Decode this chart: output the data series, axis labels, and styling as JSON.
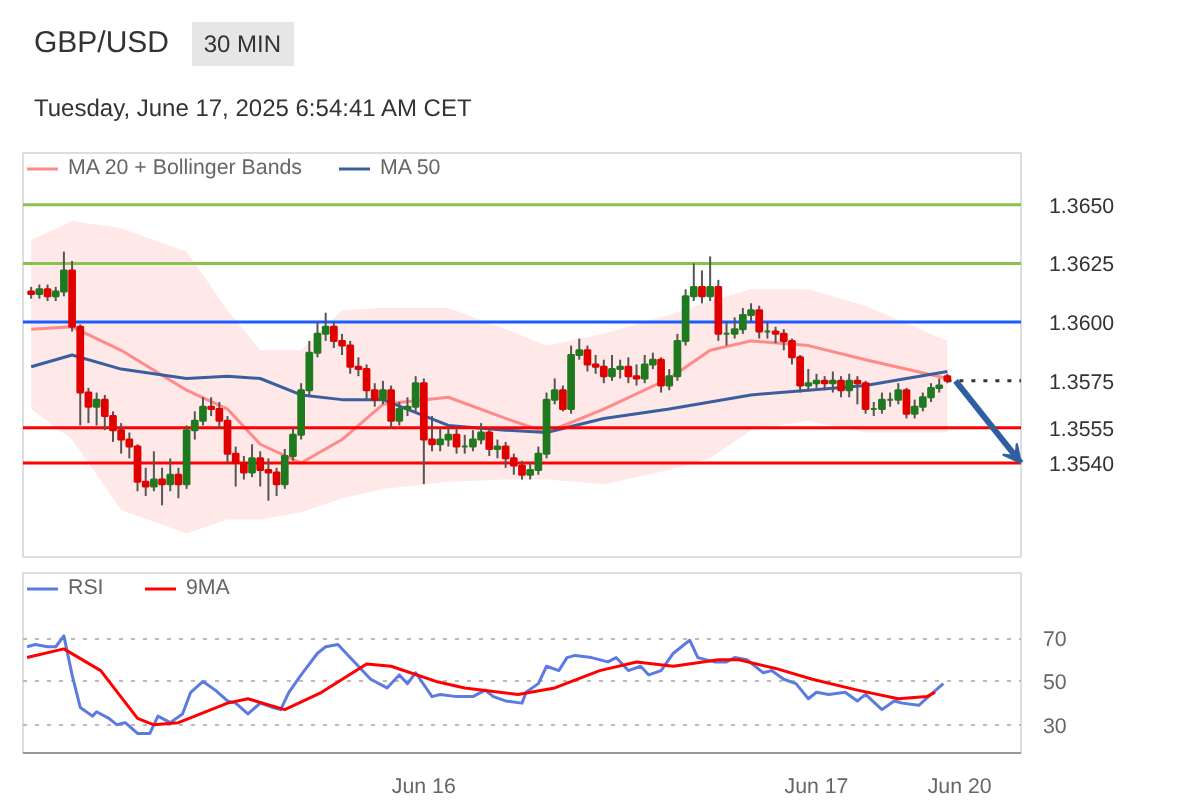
{
  "chart_data": [
    {
      "type": "candlestick",
      "title": "GBP/USD",
      "subtitle": "Tuesday, June 17, 2025 6:54:41 AM CET",
      "annotations": [
        "30 MIN"
      ],
      "x": [
        "2025-06-15T00:00",
        "2025-06-15T00:30",
        "2025-06-15T01:00",
        "2025-06-15T01:30",
        "2025-06-15T02:00",
        "2025-06-15T02:30",
        "2025-06-15T03:00",
        "2025-06-15T03:30",
        "2025-06-15T04:00",
        "2025-06-15T04:30",
        "2025-06-15T05:00",
        "2025-06-15T05:30",
        "2025-06-15T06:00",
        "2025-06-15T06:30",
        "2025-06-15T07:00",
        "2025-06-15T07:30",
        "2025-06-15T08:00",
        "2025-06-15T08:30",
        "2025-06-15T09:00",
        "2025-06-15T09:30",
        "2025-06-15T10:00",
        "2025-06-15T10:30",
        "2025-06-15T11:00",
        "2025-06-15T11:30",
        "2025-06-15T12:00",
        "2025-06-15T12:30",
        "2025-06-15T13:00",
        "2025-06-15T13:30",
        "2025-06-15T14:00",
        "2025-06-15T14:30",
        "2025-06-15T15:00",
        "2025-06-15T15:30",
        "2025-06-15T16:00",
        "2025-06-15T16:30",
        "2025-06-15T17:00",
        "2025-06-15T17:30",
        "2025-06-15T18:00",
        "2025-06-15T18:30",
        "2025-06-15T19:00",
        "2025-06-15T19:30",
        "2025-06-15T20:00",
        "2025-06-15T20:30",
        "2025-06-15T21:00",
        "2025-06-15T21:30",
        "2025-06-15T22:00",
        "2025-06-15T22:30",
        "2025-06-15T23:00",
        "2025-06-15T23:30",
        "2025-06-16T00:00",
        "2025-06-16T00:30",
        "2025-06-16T01:00",
        "2025-06-16T01:30",
        "2025-06-16T02:00",
        "2025-06-16T02:30",
        "2025-06-16T03:00",
        "2025-06-16T03:30",
        "2025-06-16T04:00",
        "2025-06-16T04:30",
        "2025-06-16T05:00",
        "2025-06-16T05:30",
        "2025-06-16T06:00",
        "2025-06-16T06:30",
        "2025-06-16T07:00",
        "2025-06-16T07:30",
        "2025-06-16T08:00",
        "2025-06-16T08:30",
        "2025-06-16T09:00",
        "2025-06-16T09:30",
        "2025-06-16T10:00",
        "2025-06-16T10:30",
        "2025-06-16T11:00",
        "2025-06-16T11:30",
        "2025-06-16T12:00",
        "2025-06-16T12:30",
        "2025-06-16T13:00",
        "2025-06-16T13:30",
        "2025-06-16T14:00",
        "2025-06-16T14:30",
        "2025-06-16T15:00",
        "2025-06-16T15:30",
        "2025-06-16T16:00",
        "2025-06-16T16:30",
        "2025-06-16T17:00",
        "2025-06-16T17:30",
        "2025-06-16T18:00",
        "2025-06-16T18:30",
        "2025-06-16T19:00",
        "2025-06-16T19:30",
        "2025-06-16T20:00",
        "2025-06-16T20:30",
        "2025-06-16T21:00",
        "2025-06-16T21:30",
        "2025-06-16T22:00",
        "2025-06-16T22:30",
        "2025-06-16T23:00",
        "2025-06-16T23:30",
        "2025-06-17T00:00",
        "2025-06-17T00:30",
        "2025-06-17T01:00",
        "2025-06-17T01:30",
        "2025-06-17T02:00",
        "2025-06-17T02:30",
        "2025-06-17T03:00",
        "2025-06-17T03:30",
        "2025-06-17T04:00",
        "2025-06-17T04:30",
        "2025-06-17T05:00",
        "2025-06-17T05:30",
        "2025-06-17T06:00",
        "2025-06-17T06:30",
        "2025-06-17T07:00",
        "2025-06-17T07:30",
        "2025-06-17T08:00"
      ],
      "ohlc": [
        [
          1.3613,
          1.3615,
          1.361,
          1.3612
        ],
        [
          1.3612,
          1.3616,
          1.361,
          1.3614
        ],
        [
          1.3614,
          1.3616,
          1.3609,
          1.3611
        ],
        [
          1.3611,
          1.3615,
          1.3609,
          1.3613
        ],
        [
          1.3613,
          1.363,
          1.3611,
          1.3622
        ],
        [
          1.3622,
          1.3626,
          1.3596,
          1.3598
        ],
        [
          1.3598,
          1.3599,
          1.3556,
          1.357
        ],
        [
          1.357,
          1.3572,
          1.3557,
          1.3564
        ],
        [
          1.3564,
          1.357,
          1.3556,
          1.3567
        ],
        [
          1.3567,
          1.3569,
          1.3554,
          1.356
        ],
        [
          1.356,
          1.3562,
          1.3549,
          1.3554
        ],
        [
          1.3554,
          1.3557,
          1.3544,
          1.355
        ],
        [
          1.355,
          1.3553,
          1.3542,
          1.3547
        ],
        [
          1.3547,
          1.3548,
          1.3528,
          1.3532
        ],
        [
          1.3532,
          1.3538,
          1.3526,
          1.353
        ],
        [
          1.353,
          1.3545,
          1.3528,
          1.3533
        ],
        [
          1.3533,
          1.3538,
          1.3522,
          1.3531
        ],
        [
          1.3531,
          1.3542,
          1.3528,
          1.3535
        ],
        [
          1.3535,
          1.3538,
          1.3525,
          1.3531
        ],
        [
          1.3531,
          1.3556,
          1.3529,
          1.3554
        ],
        [
          1.3554,
          1.3562,
          1.355,
          1.3558
        ],
        [
          1.3558,
          1.3568,
          1.3556,
          1.3564
        ],
        [
          1.3564,
          1.3568,
          1.356,
          1.3563
        ],
        [
          1.3563,
          1.3566,
          1.3555,
          1.3558
        ],
        [
          1.3558,
          1.356,
          1.354,
          1.3544
        ],
        [
          1.3544,
          1.3547,
          1.353,
          1.354
        ],
        [
          1.354,
          1.3543,
          1.3533,
          1.3536
        ],
        [
          1.3536,
          1.3548,
          1.3534,
          1.3542
        ],
        [
          1.3542,
          1.3545,
          1.353,
          1.3537
        ],
        [
          1.3537,
          1.3542,
          1.3524,
          1.3536
        ],
        [
          1.3536,
          1.3538,
          1.3526,
          1.3531
        ],
        [
          1.3531,
          1.3546,
          1.3529,
          1.3543
        ],
        [
          1.3543,
          1.3555,
          1.3541,
          1.3552
        ],
        [
          1.3552,
          1.3574,
          1.355,
          1.3571
        ],
        [
          1.3571,
          1.3592,
          1.3569,
          1.3587
        ],
        [
          1.3587,
          1.36,
          1.3585,
          1.3595
        ],
        [
          1.3595,
          1.3604,
          1.3592,
          1.3598
        ],
        [
          1.3598,
          1.36,
          1.3589,
          1.3592
        ],
        [
          1.3592,
          1.3595,
          1.3586,
          1.359
        ],
        [
          1.359,
          1.3592,
          1.3578,
          1.3581
        ],
        [
          1.3581,
          1.3585,
          1.3577,
          1.358
        ],
        [
          1.358,
          1.3582,
          1.3567,
          1.3571
        ],
        [
          1.3571,
          1.3574,
          1.3564,
          1.3567
        ],
        [
          1.3567,
          1.3575,
          1.3565,
          1.3571
        ],
        [
          1.3571,
          1.3573,
          1.3555,
          1.3558
        ],
        [
          1.3558,
          1.3566,
          1.3556,
          1.3563
        ],
        [
          1.3563,
          1.3568,
          1.356,
          1.3564
        ],
        [
          1.3564,
          1.3577,
          1.3562,
          1.3574
        ],
        [
          1.3574,
          1.3576,
          1.3531,
          1.355
        ],
        [
          1.355,
          1.356,
          1.3545,
          1.3548
        ],
        [
          1.3548,
          1.3555,
          1.3545,
          1.355
        ],
        [
          1.355,
          1.3556,
          1.3547,
          1.3552
        ],
        [
          1.3552,
          1.3555,
          1.3544,
          1.3547
        ],
        [
          1.3547,
          1.3552,
          1.3544,
          1.3547
        ],
        [
          1.3547,
          1.3554,
          1.3545,
          1.355
        ],
        [
          1.355,
          1.3557,
          1.3548,
          1.3553
        ],
        [
          1.3553,
          1.3555,
          1.3543,
          1.3546
        ],
        [
          1.3546,
          1.355,
          1.3542,
          1.3547
        ],
        [
          1.3547,
          1.3549,
          1.3538,
          1.3542
        ],
        [
          1.3542,
          1.3544,
          1.3535,
          1.3539
        ],
        [
          1.3539,
          1.3541,
          1.3533,
          1.3535
        ],
        [
          1.3535,
          1.354,
          1.3533,
          1.3537
        ],
        [
          1.3537,
          1.3547,
          1.3535,
          1.3544
        ],
        [
          1.3544,
          1.357,
          1.3542,
          1.3567
        ],
        [
          1.3567,
          1.3576,
          1.3565,
          1.3571
        ],
        [
          1.3571,
          1.3573,
          1.3562,
          1.3563
        ],
        [
          1.3563,
          1.359,
          1.3561,
          1.3586
        ],
        [
          1.3586,
          1.3593,
          1.3584,
          1.3588
        ],
        [
          1.3588,
          1.359,
          1.3579,
          1.3582
        ],
        [
          1.3582,
          1.3586,
          1.3578,
          1.3581
        ],
        [
          1.3581,
          1.3584,
          1.3574,
          1.3577
        ],
        [
          1.3577,
          1.3586,
          1.3575,
          1.358
        ],
        [
          1.358,
          1.3584,
          1.3576,
          1.3581
        ],
        [
          1.3581,
          1.3585,
          1.3574,
          1.3577
        ],
        [
          1.3577,
          1.3582,
          1.3573,
          1.3576
        ],
        [
          1.3576,
          1.3586,
          1.3574,
          1.3582
        ],
        [
          1.3582,
          1.3587,
          1.358,
          1.3584
        ],
        [
          1.3584,
          1.3585,
          1.357,
          1.3573
        ],
        [
          1.3573,
          1.358,
          1.3571,
          1.3577
        ],
        [
          1.3577,
          1.3595,
          1.3575,
          1.3592
        ],
        [
          1.3592,
          1.3614,
          1.359,
          1.3611
        ],
        [
          1.3611,
          1.3625,
          1.3609,
          1.3615
        ],
        [
          1.3615,
          1.3622,
          1.3608,
          1.3611
        ],
        [
          1.3611,
          1.3628,
          1.3609,
          1.3615
        ],
        [
          1.3615,
          1.3618,
          1.3592,
          1.3595
        ],
        [
          1.3595,
          1.36,
          1.359,
          1.3595
        ],
        [
          1.3595,
          1.3602,
          1.3593,
          1.3597
        ],
        [
          1.3597,
          1.3606,
          1.3595,
          1.3603
        ],
        [
          1.3603,
          1.3608,
          1.36,
          1.3605
        ],
        [
          1.3605,
          1.3607,
          1.3593,
          1.3596
        ],
        [
          1.3596,
          1.36,
          1.3593,
          1.3596
        ],
        [
          1.3596,
          1.3598,
          1.3591,
          1.3595
        ],
        [
          1.3595,
          1.3597,
          1.3588,
          1.3592
        ],
        [
          1.3592,
          1.3593,
          1.3582,
          1.3585
        ],
        [
          1.3585,
          1.3586,
          1.357,
          1.3573
        ],
        [
          1.3573,
          1.358,
          1.3571,
          1.3574
        ],
        [
          1.3574,
          1.3578,
          1.3572,
          1.3575
        ],
        [
          1.3575,
          1.3577,
          1.3571,
          1.3574
        ],
        [
          1.3574,
          1.3579,
          1.357,
          1.3575
        ],
        [
          1.3575,
          1.3577,
          1.3568,
          1.3571
        ],
        [
          1.3571,
          1.3578,
          1.3568,
          1.3575
        ],
        [
          1.3575,
          1.3577,
          1.3565,
          1.3574
        ],
        [
          1.3574,
          1.3575,
          1.3561,
          1.3563
        ],
        [
          1.3563,
          1.3566,
          1.356,
          1.3563
        ],
        [
          1.3563,
          1.357,
          1.3561,
          1.3567
        ],
        [
          1.3567,
          1.357,
          1.3564,
          1.3567
        ],
        [
          1.3567,
          1.3574,
          1.3565,
          1.3571
        ],
        [
          1.3571,
          1.3572,
          1.3559,
          1.3561
        ],
        [
          1.3561,
          1.3567,
          1.3559,
          1.3564
        ],
        [
          1.3564,
          1.357,
          1.3562,
          1.3568
        ],
        [
          1.3568,
          1.3574,
          1.3566,
          1.3572
        ],
        [
          1.3572,
          1.3576,
          1.357,
          1.3573
        ],
        [
          1.3577,
          1.3578,
          1.3574,
          1.3575
        ]
      ],
      "series": [
        {
          "name": "MA 20 + Bollinger Bands",
          "type": "line",
          "color": "#ff8a8a",
          "x": [
            "2025-06-15T00:00",
            "2025-06-15T02:30",
            "2025-06-15T05:30",
            "2025-06-15T09:30",
            "2025-06-15T12:00",
            "2025-06-15T14:00",
            "2025-06-15T16:30",
            "2025-06-15T19:00",
            "2025-06-15T21:30",
            "2025-06-16T01:30",
            "2025-06-16T05:00",
            "2025-06-16T07:30",
            "2025-06-16T11:00",
            "2025-06-16T15:00",
            "2025-06-16T17:30",
            "2025-06-16T20:00",
            "2025-06-16T23:30",
            "2025-06-17T03:00",
            "2025-06-17T08:00"
          ],
          "values": [
            1.3597,
            1.3598,
            1.3588,
            1.3571,
            1.3563,
            1.3548,
            1.354,
            1.355,
            1.3565,
            1.3568,
            1.3559,
            1.3553,
            1.3563,
            1.3576,
            1.3588,
            1.3592,
            1.359,
            1.3584,
            1.3576
          ],
          "lower": [
            1.3563,
            1.355,
            1.352,
            1.351,
            1.3516,
            1.3516,
            1.3519,
            1.3525,
            1.3529,
            1.3532,
            1.3533,
            1.3533,
            1.3531,
            1.3537,
            1.3542,
            1.3554,
            1.3558,
            1.3553,
            1.3553
          ],
          "upper": [
            1.3635,
            1.3643,
            1.364,
            1.363,
            1.3605,
            1.3588,
            1.3588,
            1.3605,
            1.3606,
            1.3606,
            1.3597,
            1.359,
            1.3595,
            1.3603,
            1.3609,
            1.3614,
            1.3614,
            1.3607,
            1.3592
          ]
        },
        {
          "name": "MA 50",
          "type": "line",
          "color": "#3a5fa0",
          "x": [
            "2025-06-15T00:00",
            "2025-06-15T02:30",
            "2025-06-15T05:30",
            "2025-06-15T09:30",
            "2025-06-15T12:00",
            "2025-06-15T14:00",
            "2025-06-15T16:30",
            "2025-06-15T19:00",
            "2025-06-15T21:30",
            "2025-06-16T01:30",
            "2025-06-16T05:00",
            "2025-06-16T07:30",
            "2025-06-16T11:00",
            "2025-06-16T15:00",
            "2025-06-16T17:30",
            "2025-06-16T20:00",
            "2025-06-16T23:30",
            "2025-06-17T03:00",
            "2025-06-17T08:00"
          ],
          "values": [
            1.3581,
            1.3586,
            1.358,
            1.3576,
            1.3577,
            1.3576,
            1.3569,
            1.3567,
            1.3567,
            1.3556,
            1.3554,
            1.3553,
            1.3559,
            1.3563,
            1.3566,
            1.3569,
            1.3571,
            1.3573,
            1.3579
          ]
        }
      ],
      "ref_lines": [
        {
          "axis": "y",
          "value": 1.365,
          "label": "1.3650",
          "color": "#8bc34a"
        },
        {
          "axis": "y",
          "value": 1.3625,
          "label": "1.3625",
          "color": "#8bc34a"
        },
        {
          "axis": "y",
          "value": 1.36,
          "label": "1.3600",
          "color": "#1a5cff"
        },
        {
          "axis": "y",
          "value": 1.3575,
          "label": "1.3575",
          "color": "#333333",
          "line_style": "dotted"
        },
        {
          "axis": "y",
          "value": 1.3555,
          "label": "1.3555",
          "color": "#ff0000"
        },
        {
          "axis": "y",
          "value": 1.354,
          "label": "1.3540",
          "color": "#ff0000"
        }
      ],
      "xlim": [
        "2025-06-14T23:30",
        "2025-06-17T12:30"
      ],
      "ylim": [
        1.35,
        1.3672
      ],
      "grid": false,
      "legend": "top left"
    },
    {
      "type": "line",
      "series": [
        {
          "name": "RSI",
          "color": "#5b7be0",
          "x": [
            "2025-06-14T23:45",
            "2025-06-15T00:15",
            "2025-06-15T01:00",
            "2025-06-15T01:30",
            "2025-06-15T02:00",
            "2025-06-15T02:30",
            "2025-06-15T03:00",
            "2025-06-15T03:45",
            "2025-06-15T04:00",
            "2025-06-15T04:45",
            "2025-06-15T05:15",
            "2025-06-15T05:45",
            "2025-06-15T06:30",
            "2025-06-15T07:15",
            "2025-06-15T07:45",
            "2025-06-15T08:30",
            "2025-06-15T09:15",
            "2025-06-15T09:45",
            "2025-06-15T10:30",
            "2025-06-15T11:15",
            "2025-06-15T12:00",
            "2025-06-15T12:30",
            "2025-06-15T13:15",
            "2025-06-15T14:00",
            "2025-06-15T14:45",
            "2025-06-15T15:15",
            "2025-06-15T15:45",
            "2025-06-15T16:30",
            "2025-06-15T17:30",
            "2025-06-15T18:00",
            "2025-06-15T18:45",
            "2025-06-15T19:15",
            "2025-06-15T20:00",
            "2025-06-15T20:45",
            "2025-06-15T21:45",
            "2025-06-15T22:30",
            "2025-06-15T23:00",
            "2025-06-15T23:30",
            "2025-06-16T00:30",
            "2025-06-16T01:00",
            "2025-06-16T02:00",
            "2025-06-16T03:00",
            "2025-06-16T03:45",
            "2025-06-16T04:15",
            "2025-06-16T05:00",
            "2025-06-16T06:00",
            "2025-06-16T06:15",
            "2025-06-16T07:00",
            "2025-06-16T07:30",
            "2025-06-16T08:15",
            "2025-06-16T08:45",
            "2025-06-16T09:15",
            "2025-06-16T10:15",
            "2025-06-16T11:15",
            "2025-06-16T11:45",
            "2025-06-16T12:30",
            "2025-06-16T13:15",
            "2025-06-16T13:45",
            "2025-06-16T14:30",
            "2025-06-16T15:15",
            "2025-06-16T16:15",
            "2025-06-16T16:45",
            "2025-06-16T17:45",
            "2025-06-16T18:30",
            "2025-06-16T19:00",
            "2025-06-16T19:45",
            "2025-06-16T20:45",
            "2025-06-16T21:15",
            "2025-06-16T22:00",
            "2025-06-16T22:45",
            "2025-06-16T23:30",
            "2025-06-17T00:00",
            "2025-06-17T00:45",
            "2025-06-17T01:45",
            "2025-06-17T02:30",
            "2025-06-17T03:00",
            "2025-06-17T04:00",
            "2025-06-17T04:45",
            "2025-06-17T05:15",
            "2025-06-17T06:15",
            "2025-06-17T07:00",
            "2025-06-17T07:45"
          ],
          "values": [
            66,
            67,
            66,
            66,
            71,
            53,
            38,
            34,
            36,
            33,
            30,
            31,
            26,
            26,
            34,
            31,
            35,
            45,
            50,
            46,
            41,
            40,
            35,
            40,
            38,
            37,
            45,
            53,
            63,
            66,
            67,
            63,
            57,
            51,
            47,
            53,
            49,
            54,
            43,
            44,
            43,
            43,
            46,
            43,
            41,
            40,
            45,
            49,
            57,
            55,
            61,
            62,
            61,
            59,
            61,
            55,
            57,
            53,
            55,
            63,
            69,
            61,
            59,
            59,
            61,
            60,
            54,
            55,
            51,
            49,
            42,
            45,
            44,
            45,
            41,
            44,
            37,
            41,
            40,
            39,
            44,
            49
          ]
        },
        {
          "name": "9MA",
          "color": "#ff0000",
          "x": [
            "2025-06-14T23:45",
            "2025-06-15T02:00",
            "2025-06-15T04:15",
            "2025-06-15T06:30",
            "2025-06-15T07:30",
            "2025-06-15T09:00",
            "2025-06-15T12:00",
            "2025-06-15T13:15",
            "2025-06-15T15:30",
            "2025-06-15T17:45",
            "2025-06-15T20:30",
            "2025-06-15T22:00",
            "2025-06-16T00:45",
            "2025-06-16T02:30",
            "2025-06-16T05:45",
            "2025-06-16T08:00",
            "2025-06-16T10:45",
            "2025-06-16T13:00",
            "2025-06-16T15:15",
            "2025-06-16T18:00",
            "2025-06-16T19:15",
            "2025-06-16T21:30",
            "2025-06-16T23:45",
            "2025-06-17T02:30",
            "2025-06-17T05:00",
            "2025-06-17T06:45",
            "2025-06-17T07:15"
          ],
          "values": [
            61,
            65,
            55,
            33,
            30,
            31,
            40,
            42,
            37,
            45,
            58,
            57,
            50,
            47,
            44,
            47,
            55,
            59,
            57,
            60,
            60,
            56,
            51,
            46,
            42,
            43,
            45
          ]
        }
      ],
      "xlim": [
        "2025-06-14T23:30",
        "2025-06-17T12:30"
      ],
      "xticks": [
        {
          "value": "2025-06-16T00:00",
          "label": "Jun 16"
        },
        {
          "value": "2025-06-17T00:00",
          "label": "Jun 17"
        }
      ],
      "annotations": [
        "Jun 20"
      ],
      "ylim": [
        17,
        100
      ],
      "yticks": [
        30,
        50,
        70
      ],
      "grid": "y",
      "legend": "top left"
    }
  ]
}
